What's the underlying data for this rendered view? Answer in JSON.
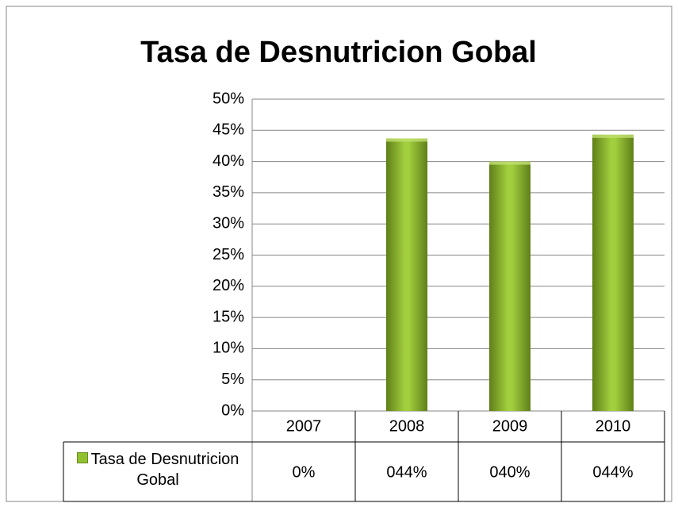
{
  "chart_data": {
    "type": "bar",
    "title": "Tasa de Desnutricion Gobal",
    "categories": [
      "2007",
      "2008",
      "2009",
      "2010"
    ],
    "series": [
      {
        "name": "Tasa de Desnutricion Gobal",
        "color": "#92c130",
        "values": [
          0,
          43.7,
          40,
          44.3
        ],
        "value_labels": [
          "0%",
          "044%",
          "040%",
          "044%"
        ]
      }
    ],
    "ylim": [
      0,
      50
    ],
    "yticks": [
      {
        "value": 0,
        "label": "0%"
      },
      {
        "value": 5,
        "label": "5%"
      },
      {
        "value": 10,
        "label": "10%"
      },
      {
        "value": 15,
        "label": "15%"
      },
      {
        "value": 20,
        "label": "20%"
      },
      {
        "value": 25,
        "label": "25%"
      },
      {
        "value": 30,
        "label": "30%"
      },
      {
        "value": 35,
        "label": "35%"
      },
      {
        "value": 40,
        "label": "40%"
      },
      {
        "value": 45,
        "label": "45%"
      },
      {
        "value": 50,
        "label": "50%"
      }
    ],
    "grid": true
  }
}
